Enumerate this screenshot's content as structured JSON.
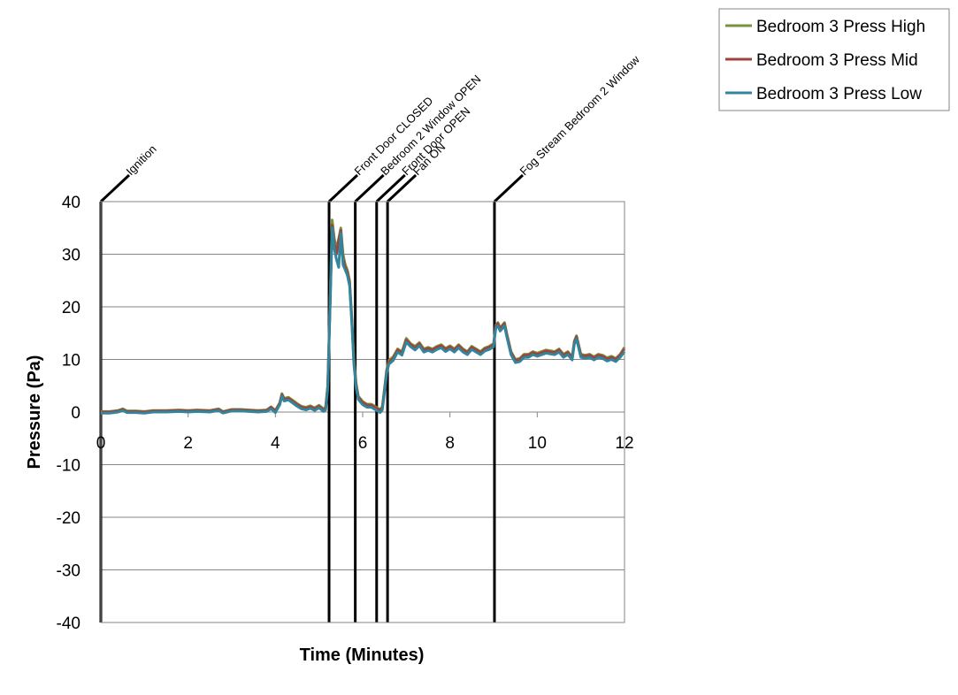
{
  "chart_data": {
    "type": "line",
    "title": "",
    "xlabel": "Time (Minutes)",
    "ylabel": "Pressure (Pa)",
    "xlim": [
      0,
      12
    ],
    "ylim": [
      -40,
      40
    ],
    "xticks": [
      0,
      2,
      4,
      6,
      8,
      10,
      12
    ],
    "yticks": [
      -40,
      -30,
      -20,
      -10,
      0,
      10,
      20,
      30,
      40
    ],
    "grid": "horizontal",
    "legend_position": "top-right",
    "events": [
      {
        "label": "Ignition",
        "x": 0.0
      },
      {
        "label": "Front Door CLOSED",
        "x": 5.23
      },
      {
        "label": "Bedroom 2 Window OPEN",
        "x": 5.83
      },
      {
        "label": "Front Door OPEN",
        "x": 6.32
      },
      {
        "label": "Fan ON",
        "x": 6.57
      },
      {
        "label": "Fog Stream Bedroom 2 Window",
        "x": 9.02
      }
    ],
    "series": [
      {
        "name": "Bedroom 3 Press High",
        "color": "#77933c",
        "x": [
          0,
          0.2,
          0.4,
          0.5,
          0.6,
          0.8,
          1.0,
          1.2,
          1.5,
          1.8,
          2.0,
          2.2,
          2.5,
          2.7,
          2.8,
          3.0,
          3.2,
          3.4,
          3.6,
          3.8,
          3.9,
          4.0,
          4.1,
          4.15,
          4.2,
          4.3,
          4.4,
          4.5,
          4.6,
          4.7,
          4.8,
          4.9,
          5.0,
          5.1,
          5.15,
          5.2,
          5.25,
          5.3,
          5.35,
          5.4,
          5.45,
          5.5,
          5.55,
          5.6,
          5.65,
          5.7,
          5.75,
          5.8,
          5.85,
          5.9,
          6.0,
          6.1,
          6.2,
          6.3,
          6.4,
          6.45,
          6.5,
          6.55,
          6.6,
          6.7,
          6.8,
          6.9,
          7.0,
          7.1,
          7.2,
          7.3,
          7.4,
          7.5,
          7.6,
          7.7,
          7.8,
          7.9,
          8.0,
          8.1,
          8.2,
          8.3,
          8.4,
          8.5,
          8.6,
          8.7,
          8.8,
          8.9,
          9.0,
          9.05,
          9.1,
          9.15,
          9.2,
          9.25,
          9.3,
          9.4,
          9.5,
          9.6,
          9.7,
          9.8,
          9.9,
          10.0,
          10.2,
          10.4,
          10.5,
          10.6,
          10.7,
          10.8,
          10.85,
          10.9,
          11.0,
          11.1,
          11.2,
          11.3,
          11.4,
          11.5,
          11.6,
          11.7,
          11.8,
          11.9,
          12.0
        ],
        "y": [
          0.1,
          0.1,
          0.3,
          0.6,
          0.2,
          0.2,
          0.1,
          0.3,
          0.3,
          0.4,
          0.3,
          0.4,
          0.3,
          0.6,
          0.1,
          0.5,
          0.5,
          0.4,
          0.3,
          0.4,
          1.0,
          0.3,
          1.8,
          3.5,
          2.6,
          2.8,
          2.2,
          1.6,
          1.1,
          0.9,
          1.2,
          0.8,
          1.3,
          0.6,
          0.9,
          5.0,
          20.0,
          36.5,
          33.0,
          31.0,
          33.0,
          35.0,
          30.0,
          28.0,
          27.0,
          25.0,
          18.0,
          10.0,
          5.5,
          3.0,
          2.0,
          1.5,
          1.5,
          1.0,
          0.5,
          1.0,
          4.5,
          8.0,
          9.8,
          10.5,
          12.0,
          11.5,
          14.0,
          13.0,
          12.5,
          13.2,
          12.0,
          12.3,
          12.0,
          12.5,
          12.8,
          12.1,
          12.6,
          12.0,
          12.8,
          12.0,
          11.5,
          12.5,
          12.0,
          11.5,
          12.2,
          12.5,
          13.0,
          16.5,
          17.0,
          16.0,
          16.5,
          17.0,
          15.0,
          11.5,
          10.0,
          10.2,
          11.0,
          11.0,
          11.5,
          11.2,
          11.8,
          11.5,
          12.0,
          11.0,
          11.5,
          10.5,
          13.5,
          14.5,
          11.0,
          10.8,
          11.0,
          10.5,
          11.0,
          10.8,
          10.3,
          10.6,
          10.2,
          11.0,
          12.3
        ]
      },
      {
        "name": "Bedroom 3 Press Mid",
        "color": "#a0413c",
        "x": [
          0,
          0.2,
          0.4,
          0.5,
          0.6,
          0.8,
          1.0,
          1.2,
          1.5,
          1.8,
          2.0,
          2.2,
          2.5,
          2.7,
          2.8,
          3.0,
          3.2,
          3.4,
          3.6,
          3.8,
          3.9,
          4.0,
          4.1,
          4.15,
          4.2,
          4.3,
          4.4,
          4.5,
          4.6,
          4.7,
          4.8,
          4.9,
          5.0,
          5.1,
          5.15,
          5.2,
          5.25,
          5.3,
          5.35,
          5.4,
          5.45,
          5.5,
          5.55,
          5.6,
          5.65,
          5.7,
          5.75,
          5.8,
          5.85,
          5.9,
          6.0,
          6.1,
          6.2,
          6.3,
          6.4,
          6.45,
          6.5,
          6.55,
          6.6,
          6.7,
          6.8,
          6.9,
          7.0,
          7.1,
          7.2,
          7.3,
          7.4,
          7.5,
          7.6,
          7.7,
          7.8,
          7.9,
          8.0,
          8.1,
          8.2,
          8.3,
          8.4,
          8.5,
          8.6,
          8.7,
          8.8,
          8.9,
          9.0,
          9.05,
          9.1,
          9.15,
          9.2,
          9.25,
          9.3,
          9.4,
          9.5,
          9.6,
          9.7,
          9.8,
          9.9,
          10.0,
          10.2,
          10.4,
          10.5,
          10.6,
          10.7,
          10.8,
          10.85,
          10.9,
          11.0,
          11.1,
          11.2,
          11.3,
          11.4,
          11.5,
          11.6,
          11.7,
          11.8,
          11.9,
          12.0
        ],
        "y": [
          0.0,
          0.0,
          0.2,
          0.5,
          0.1,
          0.1,
          0.0,
          0.2,
          0.2,
          0.3,
          0.2,
          0.3,
          0.2,
          0.5,
          0.0,
          0.4,
          0.4,
          0.3,
          0.2,
          0.3,
          0.9,
          0.2,
          1.7,
          3.3,
          2.4,
          2.6,
          2.0,
          1.4,
          0.9,
          0.7,
          1.0,
          0.6,
          1.1,
          0.4,
          0.7,
          4.8,
          19.5,
          35.5,
          32.0,
          30.0,
          32.5,
          34.5,
          29.0,
          27.5,
          26.5,
          24.5,
          17.5,
          9.5,
          5.0,
          2.8,
          1.8,
          1.3,
          1.3,
          0.8,
          0.3,
          0.8,
          4.2,
          7.7,
          9.5,
          10.2,
          11.8,
          11.2,
          13.7,
          12.8,
          12.2,
          13.0,
          11.8,
          12.1,
          11.8,
          12.3,
          12.6,
          11.9,
          12.4,
          11.8,
          12.6,
          11.8,
          11.3,
          12.3,
          11.8,
          11.3,
          12.0,
          12.3,
          12.8,
          16.3,
          16.8,
          15.8,
          16.3,
          16.8,
          14.8,
          11.3,
          9.8,
          10.0,
          10.8,
          10.8,
          11.3,
          11.0,
          11.6,
          11.3,
          11.8,
          10.8,
          11.3,
          10.3,
          13.3,
          14.3,
          10.8,
          10.6,
          10.8,
          10.3,
          10.8,
          10.6,
          10.1,
          10.4,
          10.0,
          10.8,
          12.0
        ]
      },
      {
        "name": "Bedroom 3 Press Low",
        "color": "#31859c",
        "x": [
          0,
          0.2,
          0.4,
          0.5,
          0.6,
          0.8,
          1.0,
          1.2,
          1.5,
          1.8,
          2.0,
          2.2,
          2.5,
          2.7,
          2.8,
          3.0,
          3.2,
          3.4,
          3.6,
          3.8,
          3.9,
          4.0,
          4.1,
          4.15,
          4.2,
          4.3,
          4.4,
          4.5,
          4.6,
          4.7,
          4.8,
          4.9,
          5.0,
          5.1,
          5.15,
          5.2,
          5.25,
          5.3,
          5.35,
          5.4,
          5.45,
          5.5,
          5.55,
          5.6,
          5.65,
          5.7,
          5.75,
          5.8,
          5.85,
          5.9,
          6.0,
          6.1,
          6.2,
          6.3,
          6.4,
          6.45,
          6.5,
          6.55,
          6.6,
          6.7,
          6.8,
          6.9,
          7.0,
          7.1,
          7.2,
          7.3,
          7.4,
          7.5,
          7.6,
          7.7,
          7.8,
          7.9,
          8.0,
          8.1,
          8.2,
          8.3,
          8.4,
          8.5,
          8.6,
          8.7,
          8.8,
          8.9,
          9.0,
          9.05,
          9.1,
          9.15,
          9.2,
          9.25,
          9.3,
          9.4,
          9.5,
          9.6,
          9.7,
          9.8,
          9.9,
          10.0,
          10.2,
          10.4,
          10.5,
          10.6,
          10.7,
          10.8,
          10.85,
          10.9,
          11.0,
          11.1,
          11.2,
          11.3,
          11.4,
          11.5,
          11.6,
          11.7,
          11.8,
          11.9,
          12.0
        ],
        "y": [
          -0.2,
          -0.2,
          0.0,
          0.3,
          -0.1,
          -0.1,
          -0.2,
          0.0,
          0.0,
          0.1,
          0.0,
          0.1,
          0.0,
          0.3,
          -0.2,
          0.2,
          0.2,
          0.1,
          0.0,
          0.1,
          0.6,
          -0.1,
          1.4,
          3.0,
          2.1,
          2.3,
          1.7,
          1.1,
          0.6,
          0.4,
          0.7,
          0.3,
          0.8,
          0.1,
          0.4,
          4.4,
          19.0,
          35.0,
          31.0,
          29.0,
          27.5,
          34.0,
          28.0,
          27.0,
          26.0,
          24.0,
          17.0,
          9.0,
          4.6,
          2.4,
          1.4,
          0.9,
          0.9,
          0.4,
          -0.1,
          0.4,
          3.8,
          7.3,
          9.1,
          9.8,
          11.4,
          10.8,
          13.3,
          12.4,
          11.8,
          12.6,
          11.4,
          11.7,
          11.4,
          11.9,
          12.2,
          11.5,
          12.0,
          11.4,
          12.2,
          11.4,
          10.9,
          11.9,
          11.4,
          10.9,
          11.6,
          11.9,
          12.4,
          15.9,
          16.4,
          15.4,
          15.9,
          16.4,
          14.4,
          10.9,
          9.4,
          9.6,
          10.4,
          10.4,
          10.9,
          10.6,
          11.2,
          10.9,
          11.4,
          10.4,
          10.9,
          9.9,
          12.9,
          13.9,
          10.4,
          10.2,
          10.4,
          9.9,
          10.4,
          10.2,
          9.7,
          10.0,
          9.6,
          10.4,
          11.5
        ]
      }
    ]
  }
}
